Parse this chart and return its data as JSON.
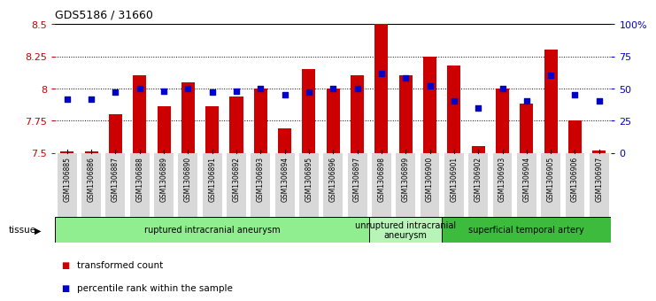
{
  "title": "GDS5186 / 31660",
  "samples": [
    "GSM1306885",
    "GSM1306886",
    "GSM1306887",
    "GSM1306888",
    "GSM1306889",
    "GSM1306890",
    "GSM1306891",
    "GSM1306892",
    "GSM1306893",
    "GSM1306894",
    "GSM1306895",
    "GSM1306896",
    "GSM1306897",
    "GSM1306898",
    "GSM1306899",
    "GSM1306900",
    "GSM1306901",
    "GSM1306902",
    "GSM1306903",
    "GSM1306904",
    "GSM1306905",
    "GSM1306906",
    "GSM1306907"
  ],
  "transformed_count": [
    7.51,
    7.51,
    7.8,
    8.1,
    7.86,
    8.05,
    7.86,
    7.94,
    8.0,
    7.69,
    8.15,
    8.0,
    8.1,
    8.5,
    8.1,
    8.25,
    8.18,
    7.55,
    8.0,
    7.88,
    8.3,
    7.75,
    7.52
  ],
  "percentile_rank": [
    42,
    42,
    47,
    50,
    48,
    50,
    47,
    48,
    50,
    45,
    47,
    50,
    50,
    62,
    58,
    52,
    40,
    35,
    50,
    40,
    60,
    45,
    40
  ],
  "ylim_left": [
    7.5,
    8.5
  ],
  "ylim_right": [
    0,
    100
  ],
  "yticks_left": [
    7.5,
    7.75,
    8.0,
    8.25,
    8.5
  ],
  "ytick_labels_left": [
    "7.5",
    "7.75",
    "8",
    "8.25",
    "8.5"
  ],
  "ytick_labels_right": [
    "0",
    "25",
    "50",
    "75",
    "100%"
  ],
  "grid_lines": [
    7.75,
    8.0,
    8.25
  ],
  "bar_color": "#cc0000",
  "dot_color": "#0000cc",
  "bar_width": 0.55,
  "groups": [
    {
      "label": "ruptured intracranial aneurysm",
      "start": 0,
      "end": 13,
      "color": "#90ee90"
    },
    {
      "label": "unruptured intracranial\naneurysm",
      "start": 13,
      "end": 16,
      "color": "#b8f4b8"
    },
    {
      "label": "superficial temporal artery",
      "start": 16,
      "end": 23,
      "color": "#3dbb3d"
    }
  ],
  "tissue_label": "tissue",
  "legend_items": [
    {
      "label": "transformed count",
      "color": "#cc0000",
      "marker": "s"
    },
    {
      "label": "percentile rank within the sample",
      "color": "#0000cc",
      "marker": "s"
    }
  ],
  "bg_color": "#ffffff",
  "tick_color_left": "#cc0000",
  "tick_color_right": "#0000cc",
  "xticklabel_bg": "#d8d8d8"
}
